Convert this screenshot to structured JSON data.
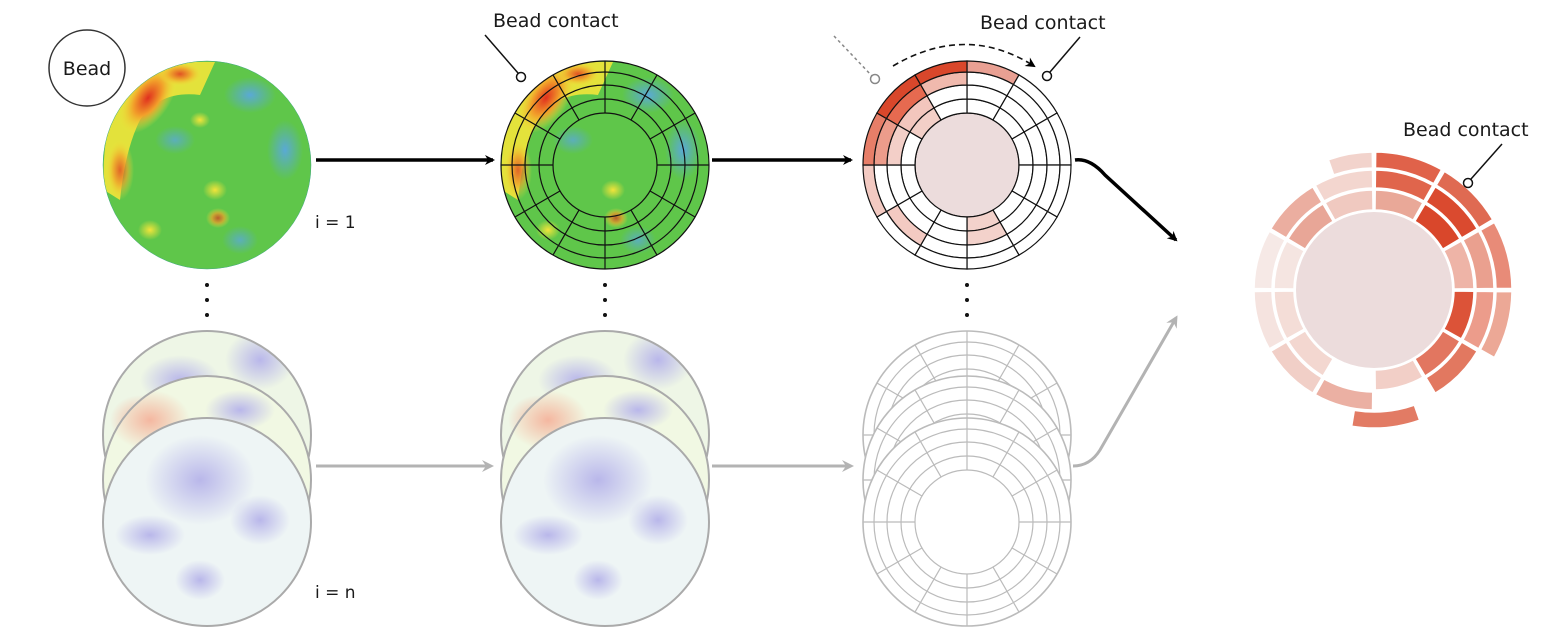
{
  "labels": {
    "bead": "Bead",
    "bead_contact_2": "Bead contact",
    "bead_contact_3": "Bead contact",
    "bead_contact_4": "Bead contact",
    "i_first": "i = 1",
    "i_last": "i = n"
  },
  "colors": {
    "arrow_main": "#000000",
    "arrow_faded": "#b3b3b3",
    "heat_green": "#5fc64a",
    "heat_red": "#e0301e",
    "heat_yellow": "#f2e43a",
    "heat_blue": "#5aa9d6",
    "center_fill": "#ecdcdc",
    "map_red": "#d9472b"
  },
  "icons": {
    "ellipsis": "vertical-dots-icon",
    "callout_pin": "callout-circle-icon"
  }
}
